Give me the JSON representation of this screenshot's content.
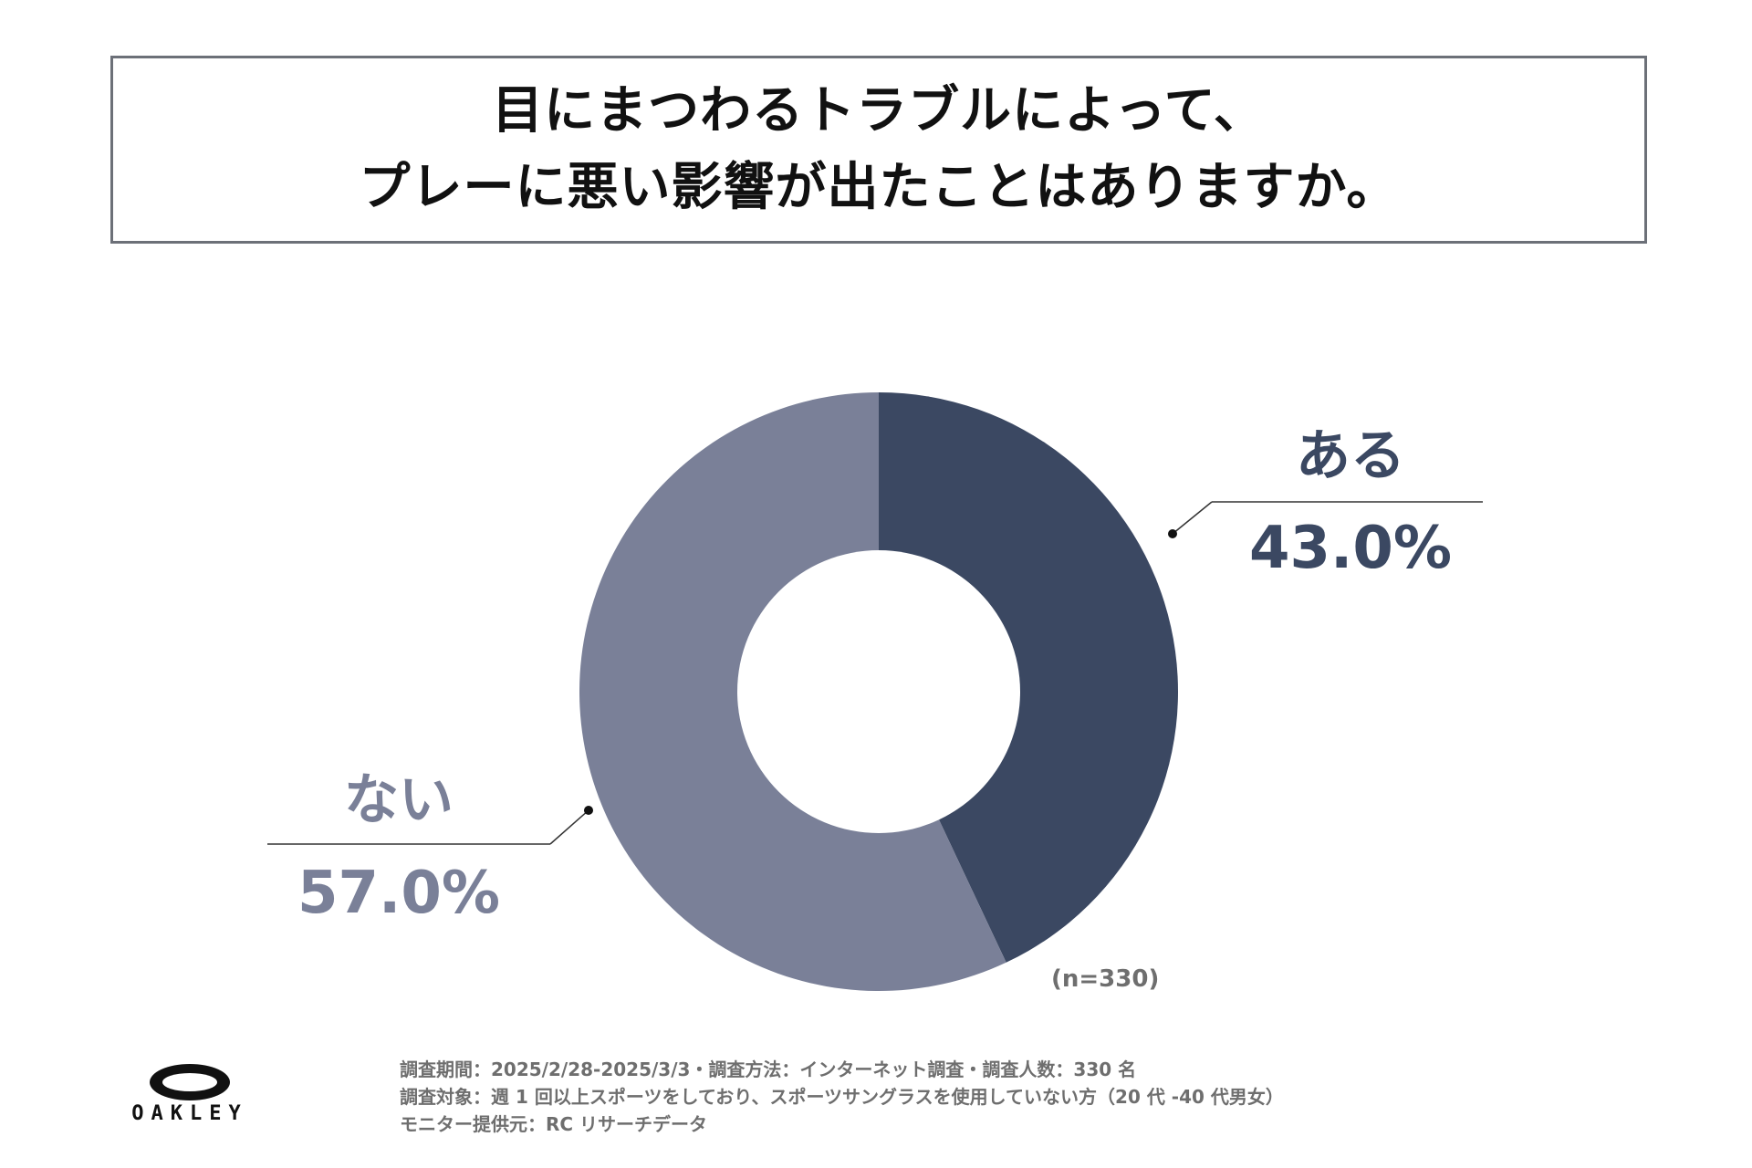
{
  "title": {
    "line1": "目にまつわるトラブルによって、",
    "line2": "プレーに悪い影響が出たことはありますか。"
  },
  "colors": {
    "aru": "#3b4862",
    "nai": "#7a8098"
  },
  "chart_data": {
    "type": "pie",
    "donut": true,
    "categories": [
      "ある",
      "ない"
    ],
    "values": [
      43.0,
      57.0
    ],
    "value_labels": [
      "43.0%",
      "57.0%"
    ],
    "sample_note": "(n=330)"
  },
  "footer": {
    "line1": "調査期間：2025/2/28-2025/3/3・調査方法：インターネット調査・調査人数：330 名",
    "line2": "調査対象：週 1 回以上スポーツをしており、スポーツサングラスを使用していない方（20 代 -40 代男女）",
    "line3": "モニター提供元：RC リサーチデータ"
  },
  "logo": {
    "text": "OAKLEY"
  }
}
